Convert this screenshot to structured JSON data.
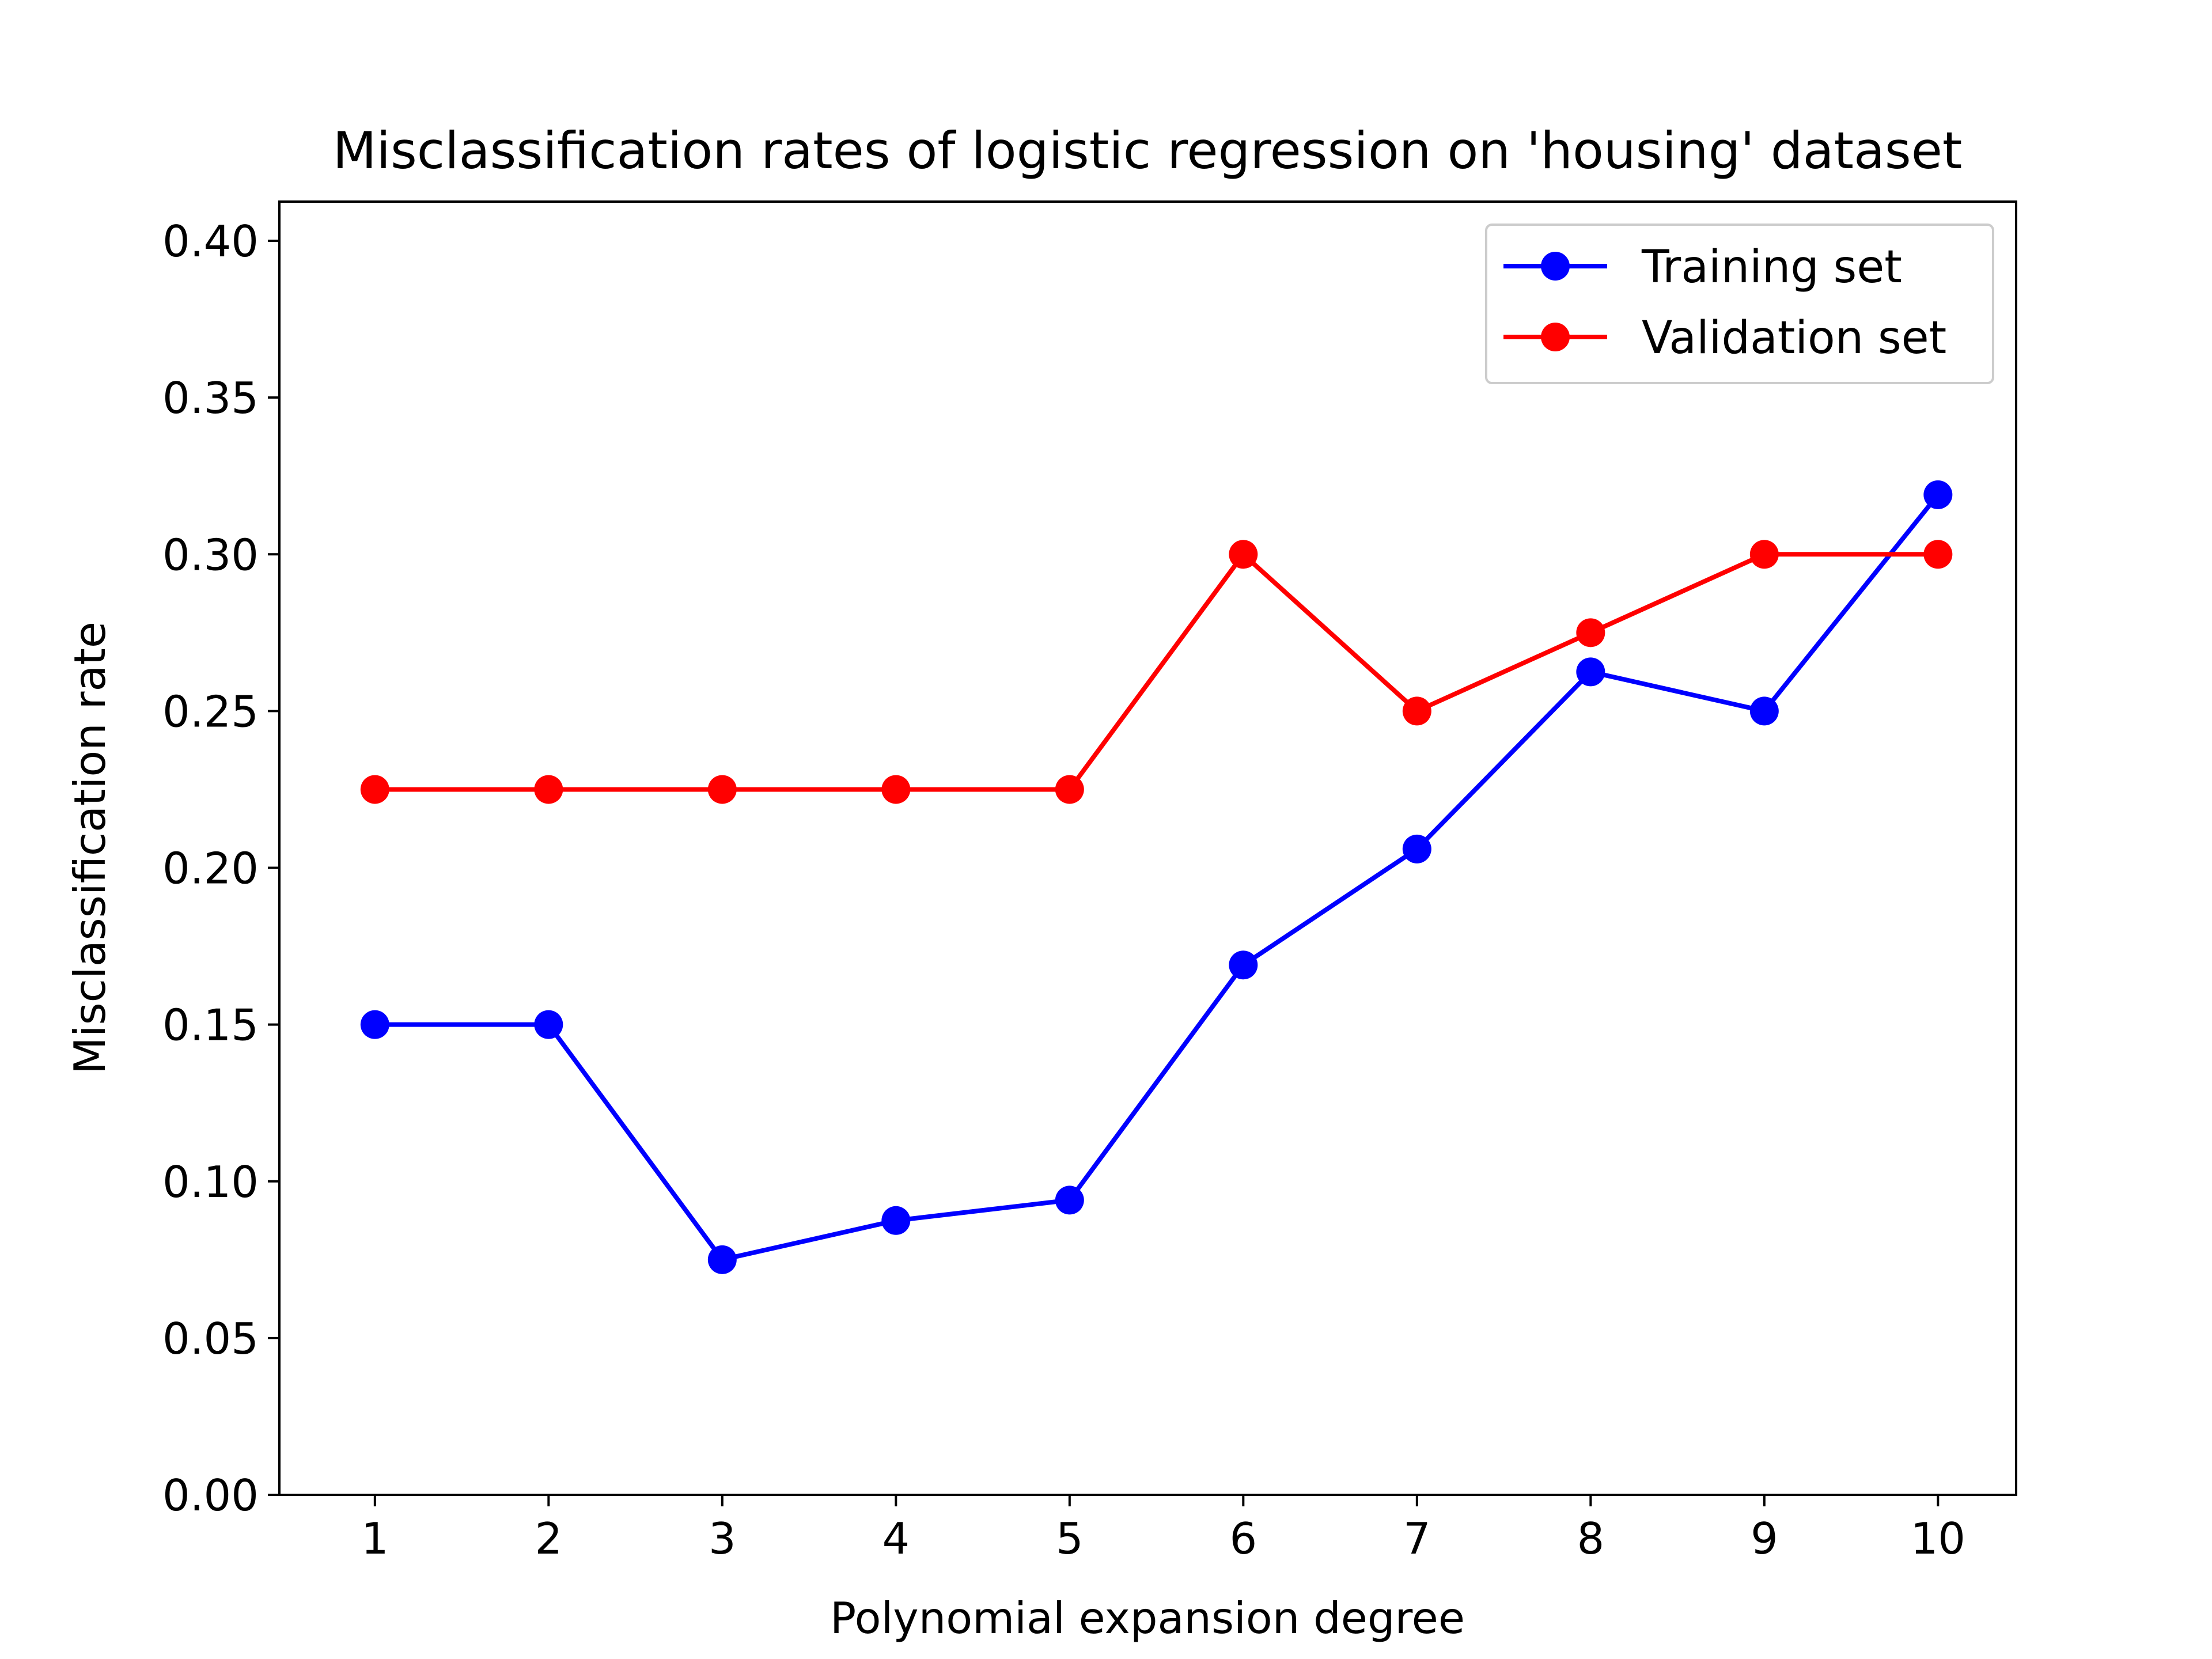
{
  "chart_data": {
    "type": "line",
    "title": "Misclassification rates of logistic regression on 'housing' dataset",
    "xlabel": "Polynomial expansion degree",
    "ylabel": "Misclassification rate",
    "x": [
      1,
      2,
      3,
      4,
      5,
      6,
      7,
      8,
      9,
      10
    ],
    "xticks": [
      "1",
      "2",
      "3",
      "4",
      "5",
      "6",
      "7",
      "8",
      "9",
      "10"
    ],
    "xlim": [
      0.45,
      10.45
    ],
    "ylim": [
      0,
      0.4125
    ],
    "yticks": [
      "0.00",
      "0.05",
      "0.10",
      "0.15",
      "0.20",
      "0.25",
      "0.30",
      "0.35",
      "0.40"
    ],
    "grid": false,
    "legend_position": "upper right",
    "series": [
      {
        "name": "Training set",
        "color": "#0000ff",
        "marker": "circle",
        "values": [
          0.15,
          0.15,
          0.075,
          0.0875,
          0.094,
          0.169,
          0.206,
          0.2625,
          0.25,
          0.319
        ]
      },
      {
        "name": "Validation set",
        "color": "#ff0000",
        "marker": "circle",
        "values": [
          0.225,
          0.225,
          0.225,
          0.225,
          0.225,
          0.3,
          0.25,
          0.275,
          0.3,
          0.3
        ]
      }
    ]
  }
}
